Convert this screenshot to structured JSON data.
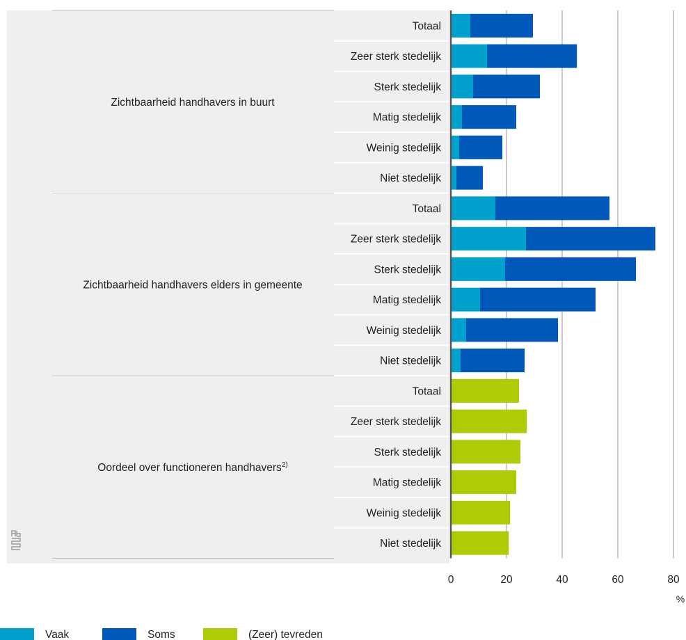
{
  "chart_data": {
    "type": "bar",
    "orientation": "horizontal",
    "stacked": true,
    "xlim": [
      0,
      80
    ],
    "x_ticks": [
      0,
      20,
      40,
      60,
      80
    ],
    "x_unit": "%",
    "grid": true,
    "legend_position": "bottom-left",
    "colors": {
      "vaak": "#00A1CD",
      "soms": "#0058B8",
      "tevreden": "#AFCB05"
    },
    "legend": [
      {
        "key": "vaak",
        "label": "Vaak"
      },
      {
        "key": "soms",
        "label": "Soms"
      },
      {
        "key": "tevreden",
        "label": "(Zeer) tevreden"
      }
    ],
    "groups": [
      {
        "label": "Zichtbaarheid handhavers in buurt",
        "superscript": "",
        "rows": [
          {
            "category": "Totaal",
            "values": {
              "vaak": 7,
              "soms": 22.5
            }
          },
          {
            "category": "Zeer sterk stedelijk",
            "values": {
              "vaak": 13,
              "soms": 32.3
            }
          },
          {
            "category": "Sterk stedelijk",
            "values": {
              "vaak": 8,
              "soms": 24
            }
          },
          {
            "category": "Matig stedelijk",
            "values": {
              "vaak": 4,
              "soms": 19.5
            }
          },
          {
            "category": "Weinig stedelijk",
            "values": {
              "vaak": 3,
              "soms": 15.5
            }
          },
          {
            "category": "Niet stedelijk",
            "values": {
              "vaak": 2,
              "soms": 9.5
            }
          }
        ]
      },
      {
        "label": "Zichtbaarheid handhavers elders in gemeente",
        "superscript": "",
        "rows": [
          {
            "category": "Totaal",
            "values": {
              "vaak": 16,
              "soms": 41
            }
          },
          {
            "category": "Zeer sterk stedelijk",
            "values": {
              "vaak": 27,
              "soms": 46.5
            }
          },
          {
            "category": "Sterk stedelijk",
            "values": {
              "vaak": 19.5,
              "soms": 47
            }
          },
          {
            "category": "Matig stedelijk",
            "values": {
              "vaak": 10.5,
              "soms": 41.5
            }
          },
          {
            "category": "Weinig stedelijk",
            "values": {
              "vaak": 5.5,
              "soms": 33
            }
          },
          {
            "category": "Niet stedelijk",
            "values": {
              "vaak": 3.5,
              "soms": 23
            }
          }
        ]
      },
      {
        "label": "Oordeel over functioneren handhavers",
        "superscript": "2)",
        "rows": [
          {
            "category": "Totaal",
            "values": {
              "tevreden": 24.5
            }
          },
          {
            "category": "Zeer sterk stedelijk",
            "values": {
              "tevreden": 27.3
            }
          },
          {
            "category": "Sterk stedelijk",
            "values": {
              "tevreden": 25
            }
          },
          {
            "category": "Matig stedelijk",
            "values": {
              "tevreden": 23.5
            }
          },
          {
            "category": "Weinig stedelijk",
            "values": {
              "tevreden": 21.3
            }
          },
          {
            "category": "Niet stedelijk",
            "values": {
              "tevreden": 20.8
            }
          }
        ]
      }
    ]
  }
}
